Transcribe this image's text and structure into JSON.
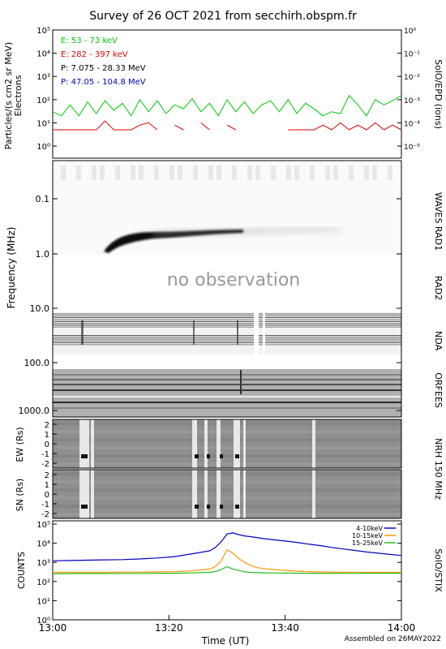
{
  "title": "Survey of 26 OCT 2021 from secchirh.obspm.fr",
  "footer": "Assembled on 26MAY2022",
  "time_axis": {
    "label": "Time (UT)",
    "ticks": [
      "13:00",
      "13:20",
      "13:40",
      "14:00"
    ],
    "start_min": 0,
    "end_min": 60
  },
  "colors": {
    "green": "#00c800",
    "red": "#dd0000",
    "black": "#000000",
    "blue": "#0000c0",
    "orange": "#ff9900",
    "stix_green": "#22bb22"
  },
  "panels": {
    "epd": {
      "ylabel_line1": "Particles/(s cm2 sr MeV)",
      "ylabel_line2": "Electrons",
      "right_label": "SolO/EPD (ions)",
      "left_ticks": [
        "10⁰",
        "10¹",
        "10²",
        "10³",
        "10⁴",
        "10⁵"
      ],
      "right_ticks": [
        "10⁻⁵",
        "10⁻⁴",
        "10⁻³",
        "10⁻²",
        "10⁻¹",
        "10⁰"
      ],
      "legend": [
        {
          "text": "E: 53 - 73 keV",
          "color": "#00c800"
        },
        {
          "text": "E: 282 - 397 keV",
          "color": "#dd0000"
        },
        {
          "text": "P: 7.075 - 28.33 MeV",
          "color": "#000000"
        },
        {
          "text": "P: 47.05 - 104.8 MeV",
          "color": "#0000c0"
        }
      ]
    },
    "freq": {
      "ylabel": "Frequency (MHz)",
      "ticks": [
        "0.1",
        "1.0",
        "10.0",
        "100.0",
        "1000.0"
      ],
      "no_obs": "no observation",
      "labels": [
        "WAVES RAD1",
        "RAD2",
        "NDA",
        "ORFEES"
      ]
    },
    "nrh": {
      "label": "NRH 150 MHz",
      "ew_label": "EW (Rs)",
      "sn_label": "SN (Rs)",
      "ticks": [
        "2",
        "1",
        "0",
        "-1",
        "-2"
      ]
    },
    "stix": {
      "ylabel": "COUNTS",
      "right_label": "SolO/STIX",
      "ticks": [
        "10⁰",
        "10¹",
        "10²",
        "10³",
        "10⁴",
        "10⁵"
      ]
    }
  },
  "chart_data": [
    {
      "type": "line",
      "title": "SolO/EPD",
      "ylog": true,
      "ylim": [
        0.3,
        100000
      ],
      "x": [
        0,
        1.5,
        3,
        4.5,
        6,
        7.5,
        9,
        10.5,
        12,
        13.5,
        15,
        16.5,
        18,
        19.5,
        21,
        22.5,
        24,
        25.5,
        27,
        28.5,
        30,
        31.5,
        33,
        34.5,
        36,
        37.5,
        39,
        40.5,
        42,
        43.5,
        45,
        46.5,
        48,
        49.5,
        51,
        52.5,
        54,
        55.5,
        57,
        58.5,
        60
      ],
      "series": [
        {
          "name": "E: 53 - 73 keV",
          "color": "#00c800",
          "values": [
            30,
            20,
            60,
            20,
            80,
            25,
            90,
            35,
            70,
            20,
            100,
            30,
            90,
            25,
            60,
            40,
            110,
            30,
            70,
            20,
            100,
            30,
            80,
            25,
            60,
            90,
            30,
            100,
            25,
            70,
            40,
            20,
            30,
            25,
            150,
            60,
            20,
            100,
            60,
            90,
            150
          ]
        },
        {
          "name": "E: 282 - 397 keV",
          "color": "#dd0000",
          "values": [
            5,
            5,
            5,
            5,
            5,
            5,
            12,
            5,
            5,
            5,
            8,
            10,
            5,
            null,
            8,
            5,
            null,
            10,
            5,
            null,
            8,
            5,
            null,
            5,
            null,
            10,
            null,
            5,
            5,
            5,
            5,
            8,
            5,
            10,
            5,
            8,
            5,
            10,
            5,
            8,
            5
          ]
        }
      ]
    },
    {
      "type": "line",
      "title": "SolO/STIX",
      "ylog": true,
      "ylim": [
        1,
        100000
      ],
      "x": [
        0,
        3,
        6,
        9,
        12,
        15,
        18,
        21,
        24,
        27,
        28,
        29,
        30,
        31,
        32,
        33,
        34,
        35,
        36,
        38,
        40,
        42,
        44,
        46,
        48,
        50,
        52,
        54,
        56,
        58,
        60
      ],
      "series": [
        {
          "name": "4-10keV",
          "color": "#0000c0",
          "values": [
            1200,
            1250,
            1300,
            1350,
            1400,
            1500,
            1700,
            2000,
            2800,
            4000,
            6000,
            12000,
            30000,
            35000,
            28000,
            24000,
            22000,
            20000,
            18000,
            15000,
            13000,
            11000,
            9000,
            7500,
            6000,
            5000,
            4200,
            3500,
            3000,
            2600,
            2300
          ]
        },
        {
          "name": "10-15keV",
          "color": "#ff9900",
          "values": [
            300,
            300,
            300,
            300,
            310,
            310,
            320,
            330,
            360,
            450,
            600,
            1200,
            4500,
            3000,
            1600,
            1000,
            700,
            550,
            480,
            420,
            380,
            350,
            330,
            320,
            310,
            300,
            300,
            300,
            300,
            300,
            300
          ]
        },
        {
          "name": "15-25keV",
          "color": "#22bb22",
          "values": [
            250,
            260,
            260,
            260,
            265,
            265,
            270,
            270,
            280,
            300,
            330,
            420,
            600,
            450,
            380,
            320,
            300,
            290,
            285,
            280,
            275,
            270,
            270,
            270,
            270,
            265,
            265,
            270,
            270,
            270,
            270
          ]
        }
      ]
    }
  ]
}
